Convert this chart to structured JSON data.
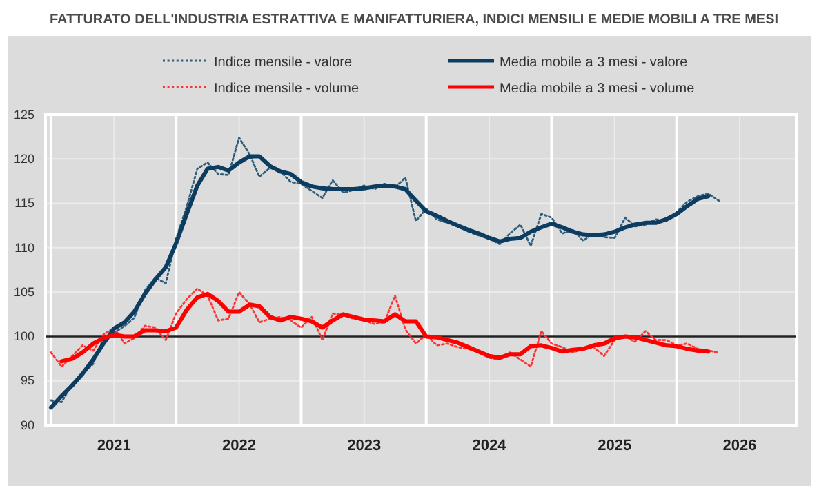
{
  "chart_data": {
    "type": "line",
    "title": "FATTURATO DELL'INDUSTRIA ESTRATTIVA E MANIFATTURIERA, INDICI MENSILI E MEDIE MOBILI A TRE MESI",
    "x": [
      "2020-07",
      "2020-08",
      "2020-09",
      "2020-10",
      "2020-11",
      "2020-12",
      "2021-01",
      "2021-02",
      "2021-03",
      "2021-04",
      "2021-05",
      "2021-06",
      "2021-07",
      "2021-08",
      "2021-09",
      "2021-10",
      "2021-11",
      "2021-12",
      "2022-01",
      "2022-02",
      "2022-03",
      "2022-04",
      "2022-05",
      "2022-06",
      "2022-07",
      "2022-08",
      "2022-09",
      "2022-10",
      "2022-11",
      "2022-12",
      "2023-01",
      "2023-02",
      "2023-03",
      "2023-04",
      "2023-05",
      "2023-06",
      "2023-07",
      "2023-08",
      "2023-09",
      "2023-10",
      "2023-11",
      "2023-12",
      "2024-01",
      "2024-02",
      "2024-03",
      "2024-04",
      "2024-05",
      "2024-06",
      "2024-07",
      "2024-08",
      "2024-09",
      "2024-10",
      "2024-11",
      "2024-12",
      "2025-01",
      "2025-02",
      "2025-03",
      "2025-04",
      "2025-05",
      "2025-06",
      "2025-07",
      "2025-08",
      "2025-09",
      "2025-10",
      "2025-11"
    ],
    "series": [
      {
        "name": "Indice mensile - valore",
        "color": "#2f5d7c",
        "line_style": "dotted",
        "values": [
          92.8,
          92.6,
          94.7,
          95.8,
          96.9,
          99.8,
          100.4,
          101.2,
          102.1,
          105.2,
          106.6,
          106.0,
          111.0,
          114.6,
          118.9,
          119.6,
          118.3,
          118.2,
          122.4,
          120.5,
          118.0,
          119.0,
          118.6,
          117.4,
          117.2,
          116.4,
          115.6,
          117.6,
          116.2,
          116.5,
          117.0,
          116.6,
          117.2,
          116.8,
          117.9,
          113.0,
          114.4,
          113.2,
          112.8,
          112.4,
          111.8,
          111.4,
          111.0,
          110.4,
          111.6,
          112.6,
          110.2,
          113.8,
          113.4,
          111.6,
          112.0,
          110.8,
          111.6,
          111.2,
          111.1,
          113.4,
          112.4,
          112.6,
          113.2,
          113.0,
          114.0,
          115.2,
          115.8,
          116.1,
          115.3
        ]
      },
      {
        "name": "Media mobile a 3 mesi - valore",
        "color": "#0d3c61",
        "line_style": "solid",
        "values": [
          92.0,
          93.3,
          94.5,
          95.8,
          97.4,
          99.2,
          100.9,
          101.6,
          102.8,
          104.8,
          106.4,
          107.8,
          110.5,
          113.8,
          117.0,
          118.9,
          119.1,
          118.7,
          119.6,
          120.3,
          120.3,
          119.2,
          118.6,
          118.3,
          117.4,
          116.9,
          116.7,
          116.6,
          116.6,
          116.6,
          116.7,
          116.9,
          117.0,
          116.9,
          116.6,
          115.3,
          114.1,
          113.6,
          113.0,
          112.5,
          112.0,
          111.6,
          111.1,
          110.7,
          111.0,
          111.1,
          111.8,
          112.3,
          112.7,
          112.3,
          111.8,
          111.5,
          111.4,
          111.5,
          111.8,
          112.3,
          112.6,
          112.8,
          112.8,
          113.2,
          113.8,
          114.7,
          115.5,
          115.8,
          null
        ]
      },
      {
        "name": "Indice mensile - volume",
        "color": "#ff3333",
        "line_style": "dotted",
        "values": [
          98.2,
          96.6,
          97.8,
          99.0,
          98.4,
          100.2,
          101.0,
          99.2,
          99.8,
          101.2,
          101.0,
          99.6,
          102.6,
          104.2,
          105.4,
          104.6,
          101.8,
          102.0,
          105.0,
          103.6,
          101.6,
          102.0,
          102.2,
          101.8,
          101.0,
          102.2,
          99.6,
          102.6,
          102.4,
          102.0,
          101.8,
          101.4,
          101.6,
          104.6,
          100.8,
          99.2,
          100.2,
          99.0,
          99.2,
          98.8,
          98.6,
          98.2,
          97.6,
          97.4,
          98.2,
          97.4,
          96.6,
          100.6,
          99.2,
          98.8,
          98.2,
          98.6,
          98.8,
          97.8,
          99.6,
          100.0,
          99.4,
          100.6,
          99.6,
          99.6,
          99.0,
          99.2,
          98.6,
          98.4,
          98.2
        ]
      },
      {
        "name": "Media mobile a 3 mesi - volume",
        "color": "#ff0000",
        "line_style": "solid",
        "values": [
          null,
          97.2,
          97.5,
          98.2,
          99.2,
          99.8,
          100.2,
          100.0,
          100.0,
          100.7,
          100.7,
          100.6,
          101.0,
          103.0,
          104.4,
          104.8,
          104.0,
          102.8,
          102.8,
          103.6,
          103.4,
          102.2,
          101.8,
          102.2,
          102.0,
          101.7,
          101.0,
          101.8,
          102.5,
          102.2,
          101.9,
          101.8,
          101.7,
          102.5,
          101.7,
          101.7,
          100.0,
          99.9,
          99.6,
          99.3,
          98.8,
          98.3,
          97.8,
          97.6,
          98.0,
          98.0,
          98.9,
          99.0,
          98.7,
          98.3,
          98.5,
          98.6,
          99.0,
          99.2,
          99.8,
          100.0,
          99.9,
          99.6,
          99.3,
          99.0,
          98.9,
          98.6,
          98.4,
          98.3,
          null
        ]
      }
    ],
    "xlim": [
      "2020-06-15",
      "2026-06-15"
    ],
    "xticks": [
      {
        "value": "2020-07-01",
        "label": null
      },
      {
        "value": "2021-01-01",
        "label": "2021"
      },
      {
        "value": "2021-07-01",
        "label": null
      },
      {
        "value": "2022-01-01",
        "label": "2022"
      },
      {
        "value": "2022-07-01",
        "label": null
      },
      {
        "value": "2023-01-01",
        "label": "2023"
      },
      {
        "value": "2023-07-01",
        "label": null
      },
      {
        "value": "2024-01-01",
        "label": "2024"
      },
      {
        "value": "2024-07-01",
        "label": null
      },
      {
        "value": "2025-01-01",
        "label": "2025"
      },
      {
        "value": "2025-07-01",
        "label": null
      },
      {
        "value": "2026-01-01",
        "label": "2026"
      }
    ],
    "ylim": [
      90,
      125
    ],
    "yticks": [
      90,
      95,
      100,
      105,
      110,
      115,
      120,
      125
    ],
    "grid": true,
    "legend": "top",
    "ref_lines": [
      {
        "axis": "y",
        "value": 100,
        "color": "#222222"
      }
    ]
  }
}
